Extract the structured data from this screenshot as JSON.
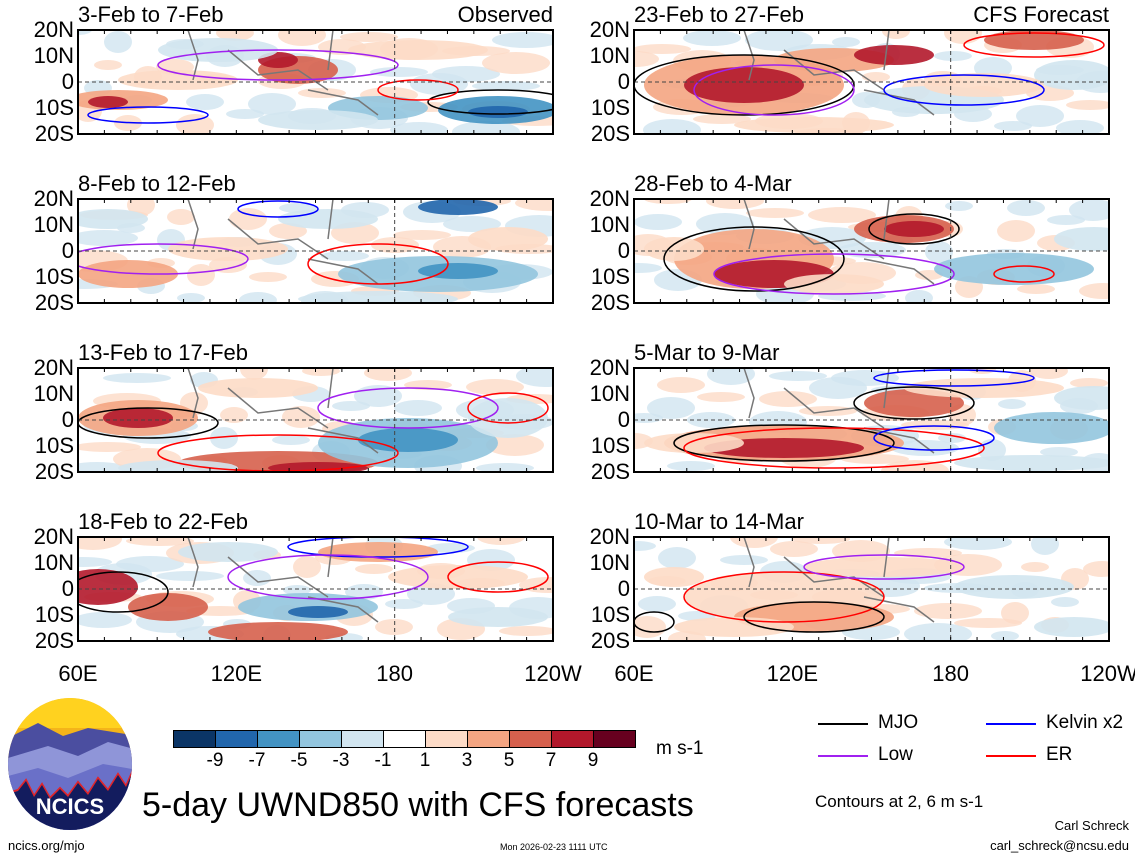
{
  "chart_data": {
    "type": "heatmap",
    "title": "5-day UWND850 with CFS forecasts",
    "variable": "UWND850",
    "units": "m s-1",
    "observed_label": "Observed",
    "forecast_label": "CFS Forecast",
    "panels": [
      {
        "title": "3-Feb to 7-Feb",
        "source": "Observed"
      },
      {
        "title": "8-Feb to 12-Feb",
        "source": "Observed"
      },
      {
        "title": "13-Feb to 17-Feb",
        "source": "Observed"
      },
      {
        "title": "18-Feb to 22-Feb",
        "source": "Observed"
      },
      {
        "title": "23-Feb to 27-Feb",
        "source": "CFS Forecast"
      },
      {
        "title": "28-Feb to 4-Mar",
        "source": "CFS Forecast"
      },
      {
        "title": "5-Mar to 9-Mar",
        "source": "CFS Forecast"
      },
      {
        "title": "10-Mar to 14-Mar",
        "source": "CFS Forecast"
      }
    ],
    "y_ticks": [
      "20N",
      "10N",
      "0",
      "10S",
      "20S"
    ],
    "x_ticks": [
      "60E",
      "120E",
      "180",
      "120W"
    ],
    "ylim": [
      -20,
      20
    ],
    "xlim": [
      60,
      240
    ],
    "colorbar": {
      "labels": [
        "-9",
        "-7",
        "-5",
        "-3",
        "-1",
        "1",
        "3",
        "5",
        "7",
        "9"
      ],
      "colors": [
        "#0b3566",
        "#2166ac",
        "#4393c3",
        "#92c5de",
        "#d1e5f0",
        "#ffffff",
        "#fddbc7",
        "#f4a582",
        "#d6604d",
        "#b2182b",
        "#67001f"
      ]
    },
    "legend": [
      {
        "name": "MJO",
        "color": "#000000"
      },
      {
        "name": "Kelvin x2",
        "color": "#0000ff"
      },
      {
        "name": "Low",
        "color": "#a020f0"
      },
      {
        "name": "ER",
        "color": "#ff0000"
      }
    ],
    "contour_note": "Contours at 2, 6 m s-1"
  },
  "footer": {
    "logo_text": "NCICS",
    "url": "ncics.org/mjo",
    "timestamp": "Mon 2026-02-23 1111 UTC",
    "author": "Carl Schreck",
    "email": "carl_schreck@ncsu.edu"
  }
}
